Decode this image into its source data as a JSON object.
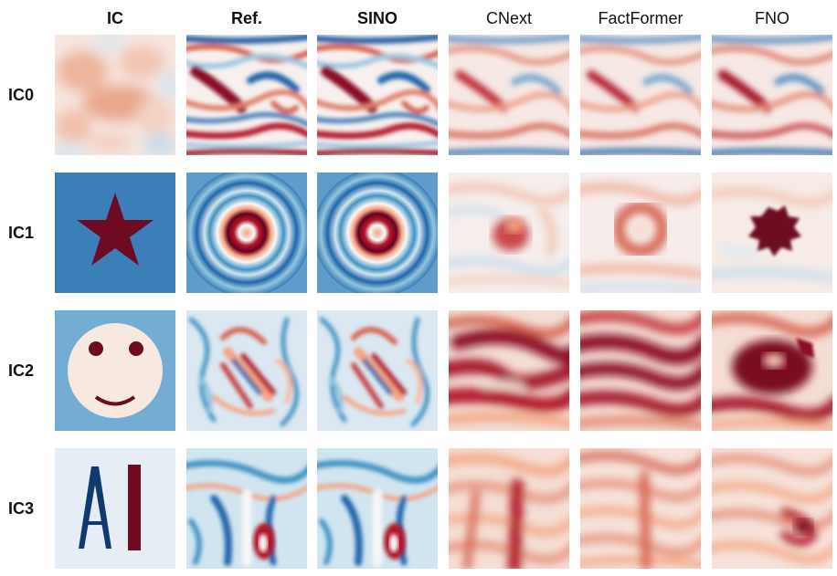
{
  "columns": [
    {
      "label": "IC",
      "bold": true
    },
    {
      "label": "Ref.",
      "bold": true
    },
    {
      "label": "SINO",
      "bold": true
    },
    {
      "label": "CNext",
      "bold": false
    },
    {
      "label": "FactFormer",
      "bold": false
    },
    {
      "label": "FNO",
      "bold": false
    }
  ],
  "rows": [
    {
      "label": "IC0"
    },
    {
      "label": "IC1"
    },
    {
      "label": "IC2"
    },
    {
      "label": "IC3"
    }
  ],
  "ic_panels": {
    "ic0": {
      "type": "gaussian-random-field",
      "background": "#f6dcd0"
    },
    "ic1": {
      "type": "star",
      "background": "#3b7fb9",
      "shape_color": "#6e0b22"
    },
    "ic2": {
      "type": "smiley",
      "background": "#73add3",
      "face_color": "#f7e8e0",
      "feature_color": "#6e0b22"
    },
    "ic3": {
      "type": "letters",
      "letters": "AI",
      "background": "#e7edf4",
      "letter_a_color": "#10396d",
      "letter_i_color": "#6e0b22"
    }
  },
  "colormap": {
    "name": "RdBu",
    "red": "#67001f",
    "white": "#f7f7f7",
    "blue": "#053061"
  }
}
